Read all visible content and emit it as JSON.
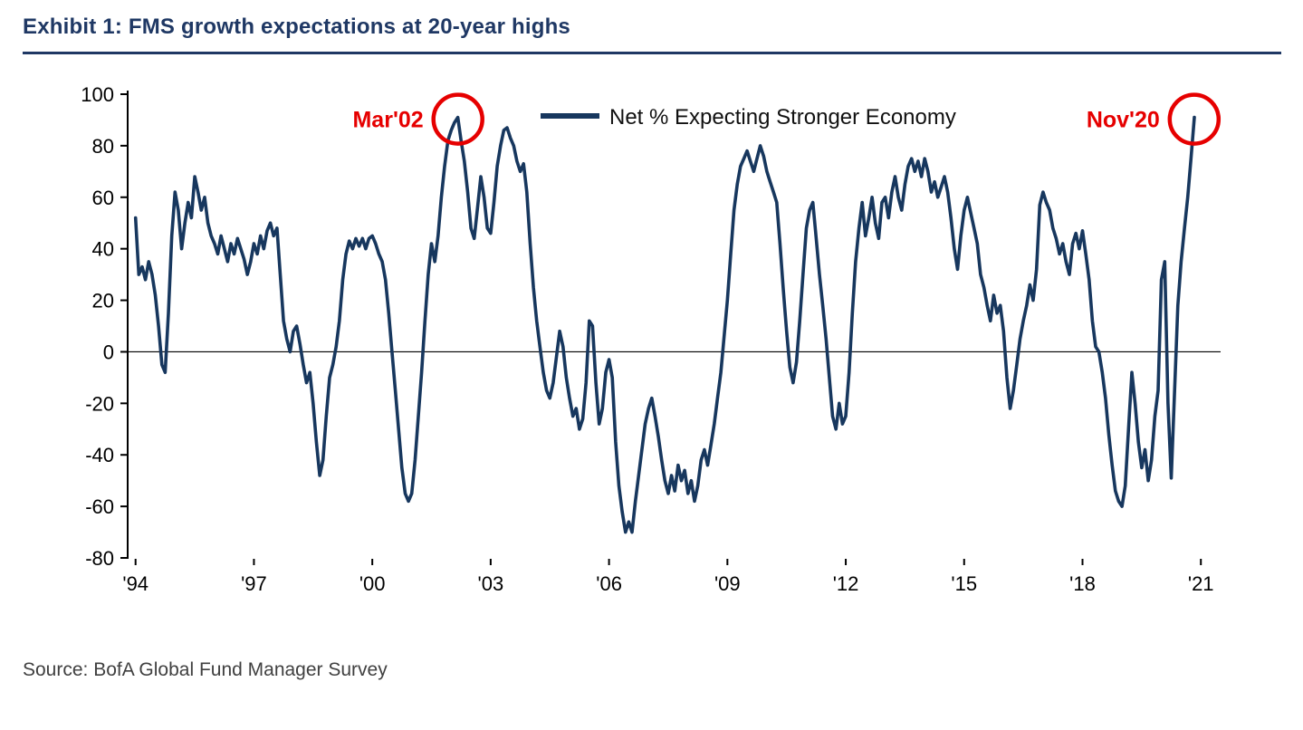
{
  "header": {
    "title": "Exhibit 1: FMS growth expectations at 20-year highs"
  },
  "source": {
    "text": "Source: BofA Global Fund Manager Survey"
  },
  "colors": {
    "title_navy": "#1f3864",
    "line_navy": "#17375e",
    "annotation_red": "#e60000",
    "axis_black": "#000000",
    "source_gray": "#404040"
  },
  "chart_data": {
    "type": "line",
    "title": "Exhibit 1: FMS growth expectations at 20-year highs",
    "xlabel": "",
    "ylabel": "",
    "xlim": [
      1993.8,
      2021.5
    ],
    "ylim": [
      -80,
      100
    ],
    "y_ticks": [
      100,
      80,
      60,
      40,
      20,
      0,
      -20,
      -40,
      -60,
      -80
    ],
    "x_tick_values": [
      1994,
      1997,
      2000,
      2003,
      2006,
      2009,
      2012,
      2015,
      2018,
      2021
    ],
    "x_tick_labels": [
      "'94",
      "'97",
      "'00",
      "'03",
      "'06",
      "'09",
      "'12",
      "'15",
      "'18",
      "'21"
    ],
    "grid": false,
    "zero_line": true,
    "legend_position": "top-center",
    "legend": [
      {
        "label": "Net % Expecting Stronger Economy",
        "color": "#17375e"
      }
    ],
    "series": [
      {
        "name": "Net % Expecting Stronger Economy",
        "color": "#17375e",
        "unit": "net %",
        "frequency": "monthly",
        "monthly_by_year": {
          "1994": [
            52,
            30,
            33,
            28,
            35,
            30,
            22,
            10,
            -5,
            -8,
            15,
            45
          ],
          "1995": [
            62,
            55,
            40,
            50,
            58,
            52,
            68,
            62,
            55,
            60,
            50,
            45
          ],
          "1996": [
            42,
            38,
            45,
            40,
            35,
            42,
            38,
            44,
            40,
            36,
            30,
            35
          ],
          "1997": [
            42,
            38,
            45,
            40,
            47,
            50,
            45,
            48,
            30,
            12,
            5,
            0
          ],
          "1998": [
            8,
            10,
            3,
            -5,
            -12,
            -8,
            -20,
            -35,
            -48,
            -42,
            -25,
            -10
          ],
          "1999": [
            -5,
            2,
            12,
            28,
            38,
            43,
            40,
            44,
            41,
            44,
            40,
            44
          ],
          "2000": [
            45,
            42,
            38,
            35,
            28,
            15,
            0,
            -15,
            -30,
            -45,
            -55,
            -58
          ],
          "2001": [
            -55,
            -42,
            -25,
            -8,
            12,
            30,
            42,
            35,
            45,
            60,
            72,
            82
          ],
          "2002": [
            86,
            89,
            91,
            82,
            74,
            62,
            48,
            44,
            56,
            68,
            60,
            48
          ],
          "2003": [
            46,
            58,
            72,
            80,
            86,
            87,
            83,
            80,
            74,
            70,
            73,
            62
          ],
          "2004": [
            42,
            25,
            12,
            2,
            -8,
            -15,
            -18,
            -12,
            -2,
            8,
            2,
            -10
          ],
          "2005": [
            -18,
            -25,
            -22,
            -30,
            -26,
            -12,
            12,
            10,
            -12,
            -28,
            -22,
            -8
          ],
          "2006": [
            -3,
            -10,
            -35,
            -52,
            -62,
            -70,
            -66,
            -70,
            -58,
            -48,
            -38,
            -28
          ],
          "2007": [
            -22,
            -18,
            -25,
            -33,
            -42,
            -50,
            -55,
            -48,
            -54,
            -44,
            -50,
            -46
          ],
          "2008": [
            -55,
            -50,
            -58,
            -52,
            -42,
            -38,
            -44,
            -36,
            -28,
            -18,
            -8,
            6
          ],
          "2009": [
            20,
            38,
            55,
            65,
            72,
            75,
            78,
            74,
            70,
            75,
            80,
            76
          ],
          "2010": [
            70,
            66,
            62,
            58,
            42,
            24,
            8,
            -6,
            -12,
            -4,
            12,
            30
          ],
          "2011": [
            48,
            55,
            58,
            44,
            30,
            18,
            5,
            -10,
            -25,
            -30,
            -20,
            -28
          ],
          "2012": [
            -25,
            -8,
            15,
            35,
            48,
            58,
            45,
            52,
            60,
            50,
            44,
            58
          ],
          "2013": [
            60,
            52,
            62,
            68,
            60,
            55,
            65,
            72,
            75,
            70,
            74,
            68
          ],
          "2014": [
            75,
            70,
            62,
            66,
            60,
            64,
            68,
            62,
            52,
            40,
            32,
            45
          ],
          "2015": [
            55,
            60,
            54,
            48,
            42,
            30,
            25,
            18,
            12,
            22,
            15,
            18
          ],
          "2016": [
            8,
            -10,
            -22,
            -15,
            -5,
            5,
            12,
            18,
            26,
            20,
            32,
            57
          ],
          "2017": [
            62,
            58,
            55,
            48,
            44,
            38,
            42,
            35,
            30,
            42,
            46,
            40
          ],
          "2018": [
            47,
            38,
            28,
            12,
            2,
            0,
            -8,
            -18,
            -32,
            -44,
            -54,
            -58
          ],
          "2019": [
            -60,
            -52,
            -30,
            -8,
            -20,
            -35,
            -45,
            -38,
            -50,
            -42,
            -25,
            -15
          ],
          "2020": [
            28,
            35,
            -20,
            -49,
            -15,
            18,
            35,
            48,
            60,
            75,
            91
          ]
        }
      }
    ],
    "annotations": [
      {
        "label": "Mar'02",
        "x": 2002.17,
        "y": 91,
        "circle": true,
        "label_side": "left",
        "color": "#e60000"
      },
      {
        "label": "Nov'20",
        "x": 2020.83,
        "y": 91,
        "circle": true,
        "label_side": "left",
        "color": "#e60000"
      }
    ]
  }
}
